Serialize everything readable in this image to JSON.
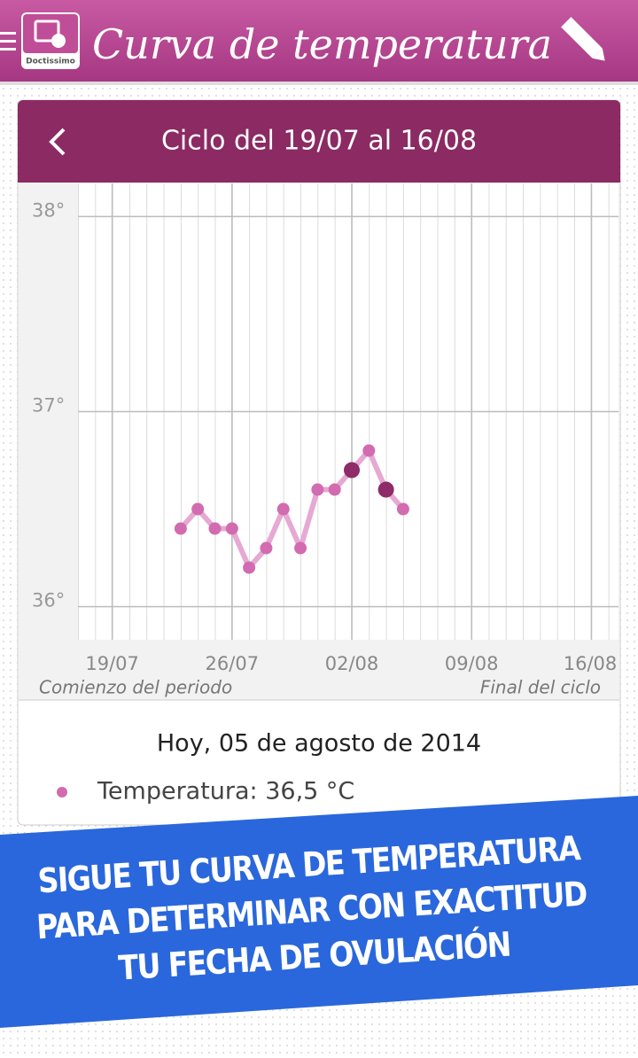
{
  "header": {
    "title": "Curva de temperatura",
    "logo": "Doctissimo"
  },
  "card": {
    "title": "Ciclo del 19/07 al 16/08",
    "today": "Hoy, 05 de agosto de 2014",
    "reading": "Temperatura: 36,5 °C",
    "start_label": "Comienzo del periodo",
    "end_label": "Final del ciclo"
  },
  "chart_data": {
    "type": "line",
    "x": [
      "23/07",
      "24/07",
      "25/07",
      "26/07",
      "27/07",
      "28/07",
      "29/07",
      "30/07",
      "31/07",
      "01/08",
      "02/08",
      "03/08",
      "04/08",
      "05/08"
    ],
    "series": [
      {
        "color": "#d26bb0",
        "line_color": "#e6a9d3",
        "highlight_color": "#8e2b68",
        "highlighted_x": [
          "02/08",
          "04/08"
        ],
        "values": [
          36.4,
          36.5,
          36.4,
          36.4,
          36.2,
          36.3,
          36.5,
          36.3,
          36.6,
          36.6,
          36.7,
          36.8,
          36.6,
          36.5
        ]
      }
    ],
    "xlim": [
      "17/07",
      "18/08"
    ],
    "xticks": [
      "19/07",
      "26/07",
      "02/08",
      "09/08",
      "16/08"
    ],
    "ylim": [
      35.83,
      38.17
    ],
    "yticks": [
      {
        "value": 36,
        "label": "36°"
      },
      {
        "value": 37,
        "label": "37°"
      },
      {
        "value": 38,
        "label": "38°"
      }
    ],
    "grid": true
  },
  "banner": {
    "lines": [
      "SIGUE TU CURVA DE TEMPERATURA",
      "PARA DETERMINAR CON EXACTITUD",
      "TU FECHA DE OVULACIÓN"
    ]
  }
}
